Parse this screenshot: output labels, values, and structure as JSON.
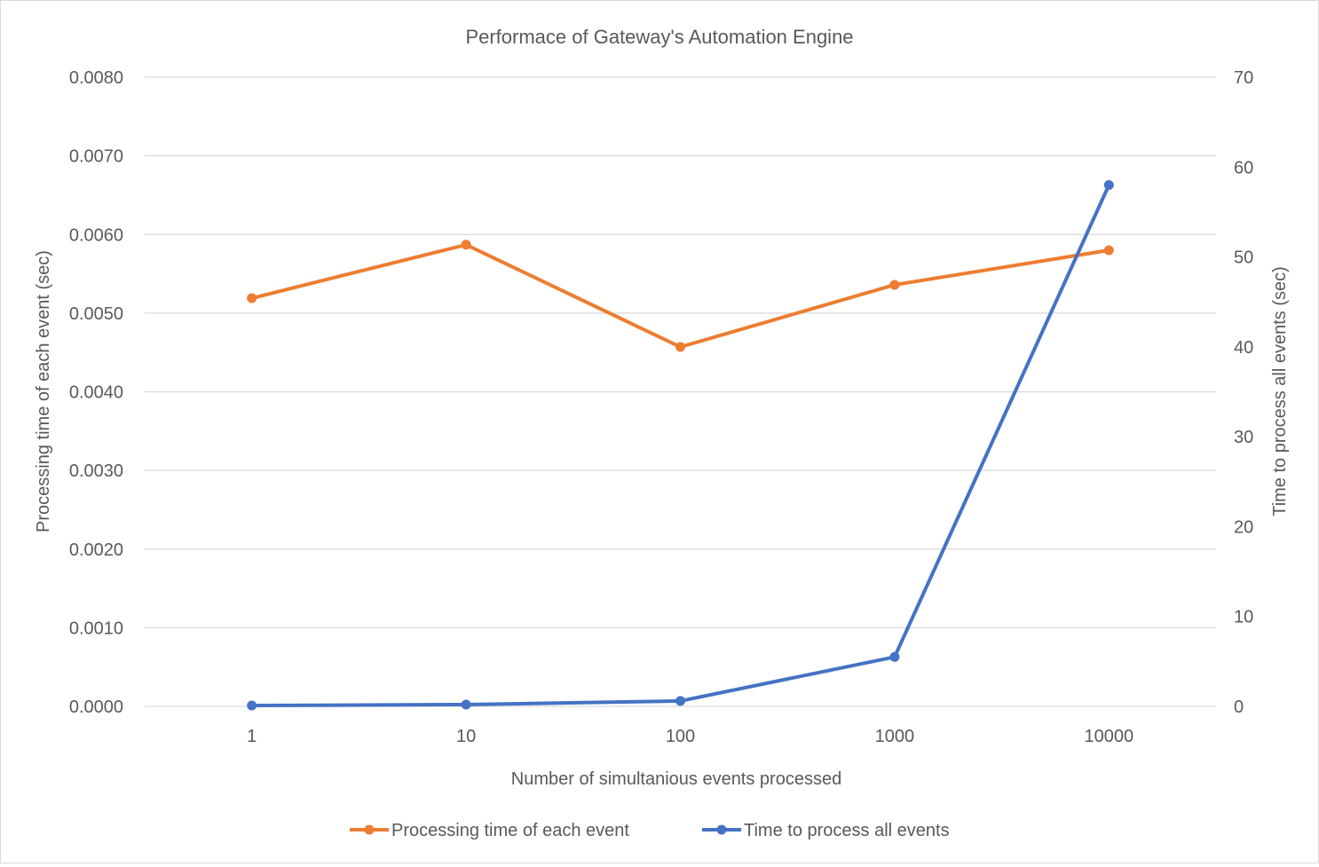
{
  "chart_data": {
    "type": "line",
    "title": "Performace of Gateway's Automation Engine",
    "xlabel": "Number of simultanious events processed",
    "ylabel_left": "Processing time of each event (sec)",
    "ylabel_right": "Time to process all events (sec)",
    "categories": [
      "1",
      "10",
      "100",
      "1000",
      "10000"
    ],
    "y_left": {
      "min": 0,
      "max": 0.008,
      "step": 0.001,
      "ticks": [
        "0.0000",
        "0.0010",
        "0.0020",
        "0.0030",
        "0.0040",
        "0.0050",
        "0.0060",
        "0.0070",
        "0.0080"
      ]
    },
    "y_right": {
      "min": 0,
      "max": 70,
      "step": 10,
      "ticks": [
        "0",
        "10",
        "20",
        "30",
        "40",
        "50",
        "60",
        "70"
      ]
    },
    "grid": true,
    "legend_position": "bottom",
    "series": [
      {
        "name": "Processing time of each event",
        "axis": "left",
        "color": "#ED7D31",
        "values": [
          0.00519,
          0.00587,
          0.00457,
          0.00536,
          0.0058
        ]
      },
      {
        "name": "Time to process all events",
        "axis": "right",
        "color": "#4472C4",
        "values": [
          0.1,
          0.2,
          0.6,
          5.5,
          58
        ]
      }
    ]
  }
}
